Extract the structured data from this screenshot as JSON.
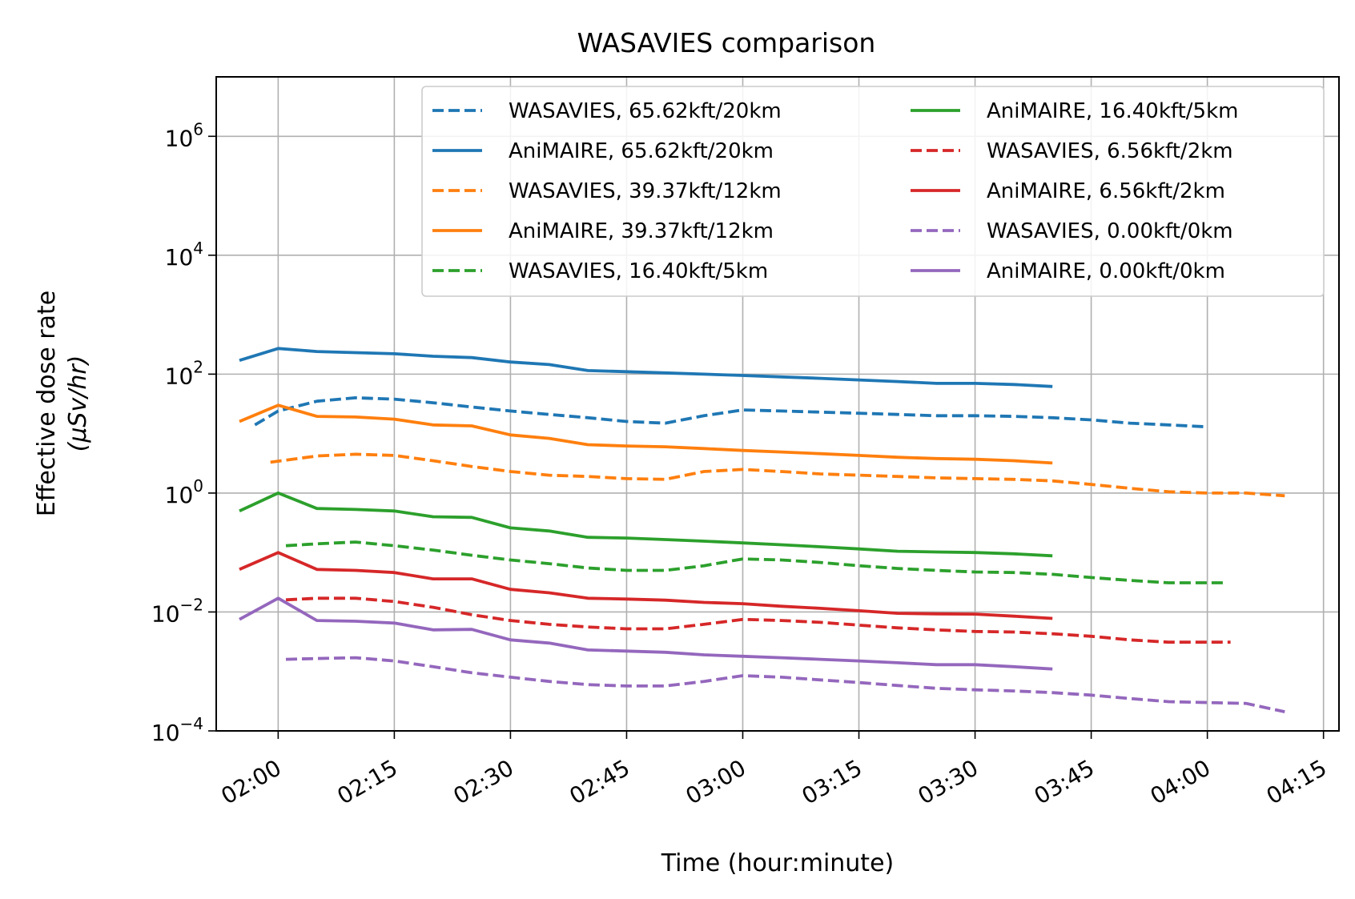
{
  "chart_data": {
    "type": "line",
    "title": "WASAVIES comparison",
    "xlabel": "Time (hour:minute)",
    "ylabel_line1": "Effective dose rate",
    "ylabel_line2": "(μSv/hr)",
    "y_scale": "log",
    "ylim": [
      0.0001,
      10000000
    ],
    "xlim": [
      "01:52",
      "04:17"
    ],
    "grid": true,
    "legend_position": "top-right",
    "x_ticks": [
      "02:00",
      "02:15",
      "02:30",
      "02:45",
      "03:00",
      "03:15",
      "03:30",
      "03:45",
      "04:00",
      "04:15"
    ],
    "y_ticks": [
      {
        "value": 0.0001,
        "base": "10",
        "exp": "−4"
      },
      {
        "value": 0.01,
        "base": "10",
        "exp": "−2"
      },
      {
        "value": 1,
        "base": "10",
        "exp": "0"
      },
      {
        "value": 100,
        "base": "10",
        "exp": "2"
      },
      {
        "value": 10000,
        "base": "10",
        "exp": "4"
      },
      {
        "value": 1000000,
        "base": "10",
        "exp": "6"
      }
    ],
    "series": [
      {
        "name": "WASAVIES, 65.62kft/20km",
        "color": "#1f77b4",
        "style": "dashed",
        "x": [
          "01:57",
          "02:00",
          "02:05",
          "02:10",
          "02:15",
          "02:20",
          "02:25",
          "02:30",
          "02:35",
          "02:40",
          "02:45",
          "02:50",
          "02:55",
          "03:00",
          "03:05",
          "03:10",
          "03:15",
          "03:20",
          "03:25",
          "03:30",
          "03:35",
          "03:40",
          "03:45",
          "03:50",
          "03:55",
          "04:00"
        ],
        "y": [
          14,
          24,
          35,
          40,
          38,
          33,
          28,
          24,
          21,
          18.5,
          16,
          15,
          20,
          25,
          24,
          23,
          22,
          21,
          20,
          20,
          19.5,
          18.5,
          17,
          15,
          14,
          13
        ]
      },
      {
        "name": "AniMAIRE, 65.62kft/20km",
        "color": "#1f77b4",
        "style": "solid",
        "x": [
          "01:55",
          "02:00",
          "02:05",
          "02:10",
          "02:15",
          "02:20",
          "02:25",
          "02:30",
          "02:35",
          "02:40",
          "02:45",
          "02:50",
          "02:55",
          "03:00",
          "03:05",
          "03:10",
          "03:15",
          "03:20",
          "03:25",
          "03:30",
          "03:35",
          "03:40"
        ],
        "y": [
          170,
          270,
          240,
          230,
          220,
          200,
          190,
          160,
          145,
          115,
          110,
          105,
          100,
          95,
          90,
          85,
          80,
          75,
          70,
          70,
          67,
          62
        ]
      },
      {
        "name": "WASAVIES, 39.37kft/12km",
        "color": "#ff7f0e",
        "style": "dashed",
        "x": [
          "01:59",
          "02:05",
          "02:10",
          "02:15",
          "02:20",
          "02:25",
          "02:30",
          "02:35",
          "02:40",
          "02:45",
          "02:50",
          "02:55",
          "03:00",
          "03:05",
          "03:10",
          "03:15",
          "03:20",
          "03:25",
          "03:30",
          "03:35",
          "03:40",
          "03:45",
          "03:50",
          "03:55",
          "04:00",
          "04:05",
          "04:10"
        ],
        "y": [
          3.3,
          4.2,
          4.5,
          4.3,
          3.5,
          2.8,
          2.3,
          2.0,
          1.9,
          1.75,
          1.7,
          2.3,
          2.5,
          2.3,
          2.1,
          2.0,
          1.9,
          1.8,
          1.75,
          1.7,
          1.6,
          1.4,
          1.2,
          1.05,
          1.0,
          1.0,
          0.9
        ]
      },
      {
        "name": "AniMAIRE, 39.37kft/12km",
        "color": "#ff7f0e",
        "style": "solid",
        "x": [
          "01:55",
          "02:00",
          "02:05",
          "02:10",
          "02:15",
          "02:20",
          "02:25",
          "02:30",
          "02:35",
          "02:40",
          "02:45",
          "02:50",
          "02:55",
          "03:00",
          "03:05",
          "03:10",
          "03:15",
          "03:20",
          "03:25",
          "03:30",
          "03:35",
          "03:40"
        ],
        "y": [
          16,
          30,
          19.5,
          19,
          17.5,
          14,
          13.5,
          9.5,
          8.3,
          6.5,
          6.2,
          6.0,
          5.6,
          5.2,
          4.9,
          4.6,
          4.3,
          4.0,
          3.8,
          3.7,
          3.5,
          3.2
        ]
      },
      {
        "name": "WASAVIES, 16.40kft/5km",
        "color": "#2ca02c",
        "style": "dashed",
        "x": [
          "02:01",
          "02:05",
          "02:10",
          "02:15",
          "02:20",
          "02:25",
          "02:30",
          "02:35",
          "02:40",
          "02:45",
          "02:50",
          "02:55",
          "03:00",
          "03:05",
          "03:10",
          "03:15",
          "03:20",
          "03:25",
          "03:30",
          "03:35",
          "03:40",
          "03:45",
          "03:50",
          "03:55",
          "04:00",
          "04:02"
        ],
        "y": [
          0.13,
          0.14,
          0.15,
          0.13,
          0.11,
          0.09,
          0.075,
          0.065,
          0.055,
          0.05,
          0.05,
          0.06,
          0.078,
          0.075,
          0.068,
          0.06,
          0.054,
          0.05,
          0.047,
          0.046,
          0.043,
          0.038,
          0.034,
          0.031,
          0.031,
          0.031
        ]
      },
      {
        "name": "AniMAIRE, 16.40kft/5km",
        "color": "#2ca02c",
        "style": "solid",
        "x": [
          "01:55",
          "02:00",
          "02:05",
          "02:10",
          "02:15",
          "02:20",
          "02:25",
          "02:30",
          "02:35",
          "02:40",
          "02:45",
          "02:50",
          "02:55",
          "03:00",
          "03:05",
          "03:10",
          "03:15",
          "03:20",
          "03:25",
          "03:30",
          "03:35",
          "03:40"
        ],
        "y": [
          0.5,
          1.0,
          0.55,
          0.53,
          0.5,
          0.4,
          0.39,
          0.26,
          0.23,
          0.18,
          0.175,
          0.165,
          0.155,
          0.145,
          0.135,
          0.125,
          0.115,
          0.105,
          0.102,
          0.1,
          0.095,
          0.088
        ]
      },
      {
        "name": "WASAVIES, 6.56kft/2km",
        "color": "#d62728",
        "style": "dashed",
        "x": [
          "02:01",
          "02:05",
          "02:10",
          "02:15",
          "02:20",
          "02:25",
          "02:30",
          "02:35",
          "02:40",
          "02:45",
          "02:50",
          "02:55",
          "03:00",
          "03:05",
          "03:10",
          "03:15",
          "03:20",
          "03:25",
          "03:30",
          "03:35",
          "03:40",
          "03:45",
          "03:50",
          "03:55",
          "04:00",
          "04:03"
        ],
        "y": [
          0.016,
          0.017,
          0.017,
          0.015,
          0.012,
          0.009,
          0.0072,
          0.0062,
          0.0056,
          0.0052,
          0.0052,
          0.0062,
          0.0075,
          0.0072,
          0.0067,
          0.006,
          0.0054,
          0.005,
          0.0047,
          0.0046,
          0.0043,
          0.0039,
          0.0034,
          0.0031,
          0.0031,
          0.0031
        ]
      },
      {
        "name": "AniMAIRE, 6.56kft/2km",
        "color": "#d62728",
        "style": "solid",
        "x": [
          "01:55",
          "02:00",
          "02:05",
          "02:10",
          "02:15",
          "02:20",
          "02:25",
          "02:30",
          "02:35",
          "02:40",
          "02:45",
          "02:50",
          "02:55",
          "03:00",
          "03:05",
          "03:10",
          "03:15",
          "03:20",
          "03:25",
          "03:30",
          "03:35",
          "03:40"
        ],
        "y": [
          0.052,
          0.1,
          0.052,
          0.05,
          0.046,
          0.036,
          0.036,
          0.024,
          0.021,
          0.017,
          0.0165,
          0.0158,
          0.0145,
          0.0138,
          0.0125,
          0.0115,
          0.0105,
          0.0095,
          0.0093,
          0.0092,
          0.0085,
          0.0078
        ]
      },
      {
        "name": "WASAVIES, 0.00kft/0km",
        "color": "#9467bd",
        "style": "dashed",
        "x": [
          "02:01",
          "02:05",
          "02:10",
          "02:15",
          "02:20",
          "02:25",
          "02:30",
          "02:35",
          "02:40",
          "02:45",
          "02:50",
          "02:55",
          "03:00",
          "03:05",
          "03:10",
          "03:15",
          "03:20",
          "03:25",
          "03:30",
          "03:35",
          "03:40",
          "03:45",
          "03:50",
          "03:55",
          "04:00",
          "04:05",
          "04:10"
        ],
        "y": [
          0.0016,
          0.00165,
          0.0017,
          0.0015,
          0.0012,
          0.00095,
          0.0008,
          0.00068,
          0.0006,
          0.00057,
          0.00057,
          0.00068,
          0.00085,
          0.0008,
          0.00072,
          0.00065,
          0.00058,
          0.00052,
          0.00049,
          0.00047,
          0.00044,
          0.0004,
          0.00035,
          0.00031,
          0.0003,
          0.00029,
          0.00021
        ]
      },
      {
        "name": "AniMAIRE, 0.00kft/0km",
        "color": "#9467bd",
        "style": "solid",
        "x": [
          "01:55",
          "02:00",
          "02:05",
          "02:10",
          "02:15",
          "02:20",
          "02:25",
          "02:30",
          "02:35",
          "02:40",
          "02:45",
          "02:50",
          "02:55",
          "03:00",
          "03:05",
          "03:10",
          "03:15",
          "03:20",
          "03:25",
          "03:30",
          "03:35",
          "03:40"
        ],
        "y": [
          0.0075,
          0.017,
          0.0072,
          0.007,
          0.0065,
          0.005,
          0.0051,
          0.0034,
          0.003,
          0.0023,
          0.0022,
          0.0021,
          0.0019,
          0.0018,
          0.0017,
          0.0016,
          0.0015,
          0.0014,
          0.0013,
          0.0013,
          0.0012,
          0.0011
        ]
      }
    ],
    "legend_order": [
      0,
      1,
      2,
      3,
      4,
      5,
      6,
      7,
      8,
      9
    ]
  }
}
